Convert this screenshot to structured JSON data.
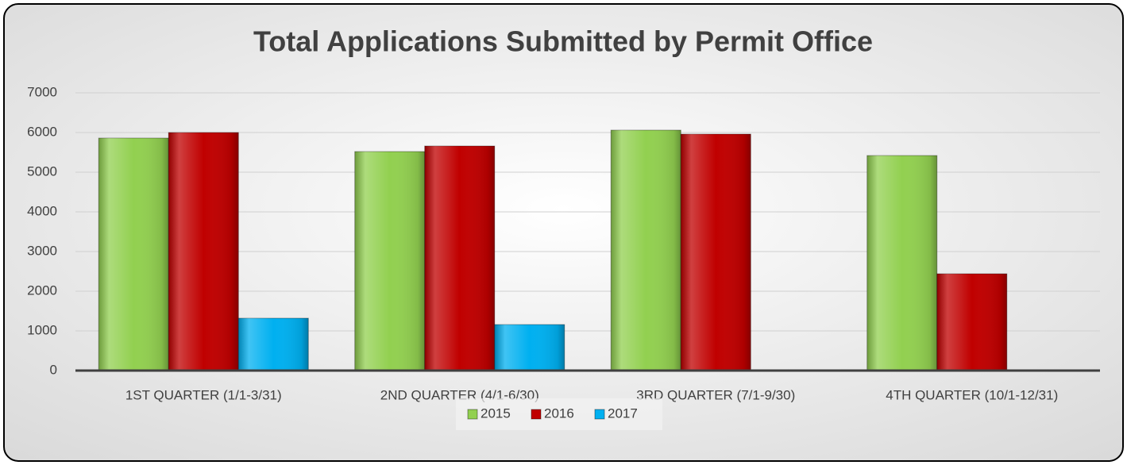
{
  "chart_data": {
    "type": "bar",
    "title": "Total Applications Submitted by Permit Office",
    "categories": [
      "1ST QUARTER (1/1-3/31)",
      "2ND QUARTER (4/1-6/30)",
      "3RD QUARTER (7/1-9/30)",
      "4TH QUARTER (10/1-12/31)"
    ],
    "series": [
      {
        "name": "2015",
        "color": "#92d050",
        "values": [
          5860,
          5520,
          6060,
          5420
        ]
      },
      {
        "name": "2016",
        "color": "#c00000",
        "values": [
          6000,
          5660,
          5960,
          2440
        ]
      },
      {
        "name": "2017",
        "color": "#00b0f0",
        "values": [
          1320,
          1160,
          null,
          null
        ]
      }
    ],
    "ylim": [
      0,
      7000
    ],
    "yticks": [
      0,
      1000,
      2000,
      3000,
      4000,
      5000,
      6000,
      7000
    ],
    "grid": true,
    "legend": "bottom"
  }
}
